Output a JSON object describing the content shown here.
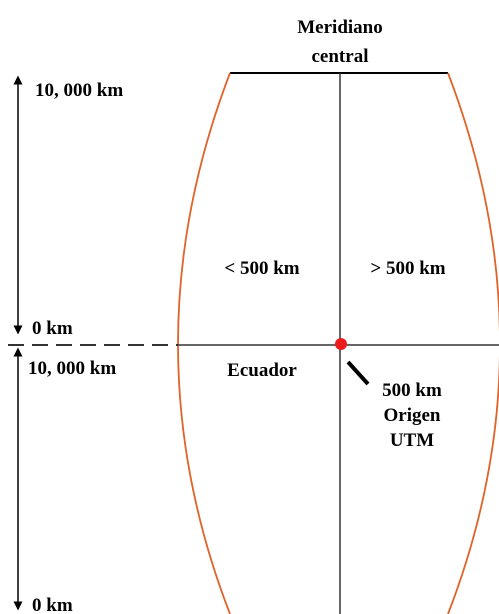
{
  "title": [
    "Meridiano",
    "central"
  ],
  "axis_labels": {
    "upper_top": "10, 000 km",
    "upper_bottom": "0 km",
    "lower_top": "10, 000 km",
    "lower_bottom": "0 km"
  },
  "zones": {
    "west": "< 500 km",
    "east": "> 500 km"
  },
  "equator": "Ecuador",
  "origin": [
    "500 km",
    "Origen",
    "UTM"
  ]
}
